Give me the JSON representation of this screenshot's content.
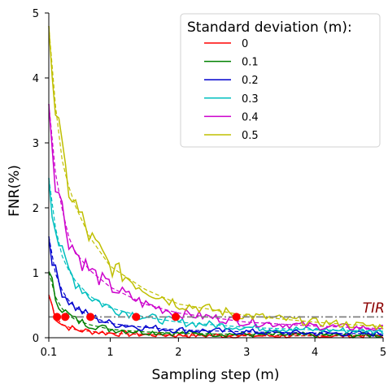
{
  "chart_data": {
    "type": "line",
    "title": "",
    "xlabel": "Sampling step (m)",
    "ylabel": "FNR(%)",
    "xlim": [
      0.1,
      5
    ],
    "ylim": [
      0,
      5
    ],
    "x_ticks": [
      {
        "value": 0.1,
        "label": "0.1"
      },
      {
        "value": 1,
        "label": "1"
      },
      {
        "value": 2,
        "label": "2"
      },
      {
        "value": 3,
        "label": "3"
      },
      {
        "value": 4,
        "label": "4"
      },
      {
        "value": 5,
        "label": "5"
      }
    ],
    "y_ticks": [
      {
        "value": 0,
        "label": "0"
      },
      {
        "value": 1,
        "label": "1"
      },
      {
        "value": 2,
        "label": "2"
      },
      {
        "value": 3,
        "label": "3"
      },
      {
        "value": 4,
        "label": "4"
      },
      {
        "value": 5,
        "label": "5"
      }
    ],
    "legend_title": "Standard deviation (m):",
    "legend_position": "top-right",
    "series": [
      {
        "name": "0",
        "color": "#ff0000",
        "x": [
          0.1,
          0.2,
          0.3,
          0.4,
          0.5,
          0.7,
          1.0,
          1.5,
          2.0,
          3.0,
          4.0,
          5.0
        ],
        "y": [
          0.66,
          0.32,
          0.2,
          0.16,
          0.12,
          0.1,
          0.07,
          0.05,
          0.04,
          0.03,
          0.03,
          0.03
        ]
      },
      {
        "name": "0.1",
        "color": "#008000",
        "x": [
          0.1,
          0.2,
          0.3,
          0.4,
          0.5,
          0.7,
          1.0,
          1.5,
          2.0,
          3.0,
          4.0,
          5.0
        ],
        "y": [
          1.02,
          0.62,
          0.44,
          0.34,
          0.27,
          0.2,
          0.13,
          0.09,
          0.07,
          0.05,
          0.04,
          0.04
        ]
      },
      {
        "name": "0.2",
        "color": "#0000cd",
        "x": [
          0.1,
          0.2,
          0.3,
          0.4,
          0.5,
          0.7,
          1.0,
          1.5,
          2.0,
          3.0,
          4.0,
          5.0
        ],
        "y": [
          1.56,
          0.98,
          0.72,
          0.56,
          0.46,
          0.33,
          0.22,
          0.16,
          0.12,
          0.09,
          0.07,
          0.06
        ]
      },
      {
        "name": "0.3",
        "color": "#00bfbf",
        "x": [
          0.1,
          0.2,
          0.3,
          0.4,
          0.5,
          0.7,
          1.0,
          1.5,
          2.0,
          3.0,
          4.0,
          5.0
        ],
        "y": [
          2.46,
          1.68,
          1.24,
          1.02,
          0.86,
          0.64,
          0.46,
          0.32,
          0.24,
          0.16,
          0.12,
          0.1
        ]
      },
      {
        "name": "0.4",
        "color": "#cc00cc",
        "x": [
          0.1,
          0.2,
          0.3,
          0.4,
          0.5,
          0.7,
          1.0,
          1.5,
          2.0,
          3.0,
          4.0,
          5.0
        ],
        "y": [
          3.6,
          2.52,
          1.96,
          1.52,
          1.3,
          1.04,
          0.78,
          0.52,
          0.38,
          0.24,
          0.18,
          0.14
        ]
      },
      {
        "name": "0.5",
        "color": "#bfbf00",
        "x": [
          0.1,
          0.2,
          0.3,
          0.4,
          0.5,
          0.7,
          1.0,
          1.5,
          2.0,
          3.0,
          4.0,
          5.0
        ],
        "y": [
          4.8,
          3.55,
          2.7,
          2.3,
          2.0,
          1.55,
          1.1,
          0.75,
          0.52,
          0.34,
          0.24,
          0.17
        ]
      }
    ],
    "threshold": {
      "label": "TIR",
      "value": 0.32,
      "color": "#808080"
    },
    "intersection_points": [
      {
        "x": 0.22,
        "y": 0.32
      },
      {
        "x": 0.34,
        "y": 0.32
      },
      {
        "x": 0.71,
        "y": 0.32
      },
      {
        "x": 1.38,
        "y": 0.32
      },
      {
        "x": 1.96,
        "y": 0.32
      },
      {
        "x": 2.85,
        "y": 0.32
      }
    ],
    "intersection_color": "#ff0000"
  }
}
